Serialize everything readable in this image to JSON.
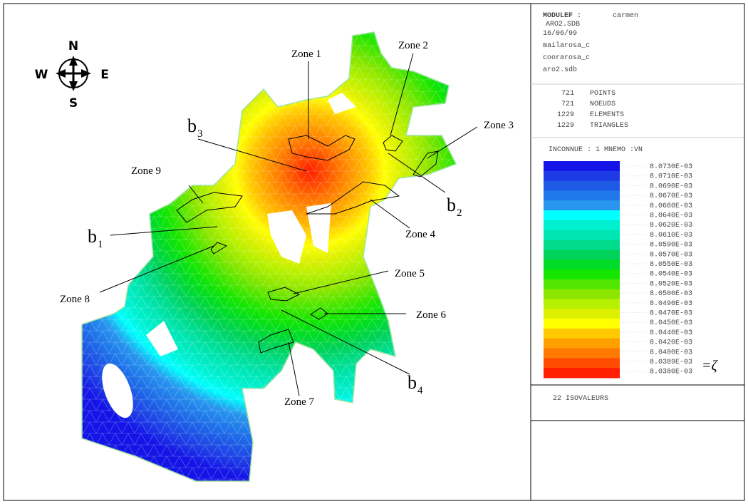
{
  "header": {
    "program": "MODULEF :",
    "user": "carmen",
    "lines": [
      "ARO2.SDB",
      "16/06/99",
      "mailarosa_c",
      "coorarosa_c",
      "aro2.sdb"
    ]
  },
  "stats": [
    [
      "721",
      "POINTS"
    ],
    [
      "721",
      "NOEUDS"
    ],
    [
      "1229",
      "ELEMENTS"
    ],
    [
      "1229",
      "TRIANGLES"
    ]
  ],
  "unknown": "INCONNUE :  1  MNEMO :VN",
  "legend": {
    "labels": [
      "8.0730E-03",
      "8.0710E-03",
      "8.0690E-03",
      "8.0670E-03",
      "8.0660E-03",
      "8.0640E-03",
      "8.0620E-03",
      "8.0610E-03",
      "8.0590E-03",
      "8.0570E-03",
      "8.0550E-03",
      "8.0540E-03",
      "8.0520E-03",
      "8.0500E-03",
      "8.0490E-03",
      "8.0470E-03",
      "8.0450E-03",
      "8.0440E-03",
      "8.0420E-03",
      "8.0400E-03",
      "8.0389E-03",
      "8.0380E-03"
    ],
    "colors": [
      "#1414e6",
      "#1e3ce6",
      "#1e5ae6",
      "#2078ea",
      "#2896ee",
      "#00ffff",
      "#00f0d0",
      "#00e6b4",
      "#00dc8c",
      "#00d25a",
      "#00dc28",
      "#14e600",
      "#50e600",
      "#8ce600",
      "#b4f000",
      "#dcf000",
      "#ffff00",
      "#ffc800",
      "#ffa000",
      "#ff7800",
      "#ff4b00",
      "#ff1e00"
    ],
    "marker": "=ζ"
  },
  "isovalues": "22 ISOVALEURS",
  "compass": {
    "n": "N",
    "s": "S",
    "e": "E",
    "w": "W"
  },
  "zones": [
    "Zone 1",
    "Zone 2",
    "Zone 3",
    "Zone 4",
    "Zone 5",
    "Zone 6",
    "Zone 7",
    "Zone 8",
    "Zone 9"
  ],
  "points": [
    {
      "base": "b",
      "sub": "1"
    },
    {
      "base": "b",
      "sub": "2"
    },
    {
      "base": "b",
      "sub": "3"
    },
    {
      "base": "b",
      "sub": "4"
    }
  ]
}
